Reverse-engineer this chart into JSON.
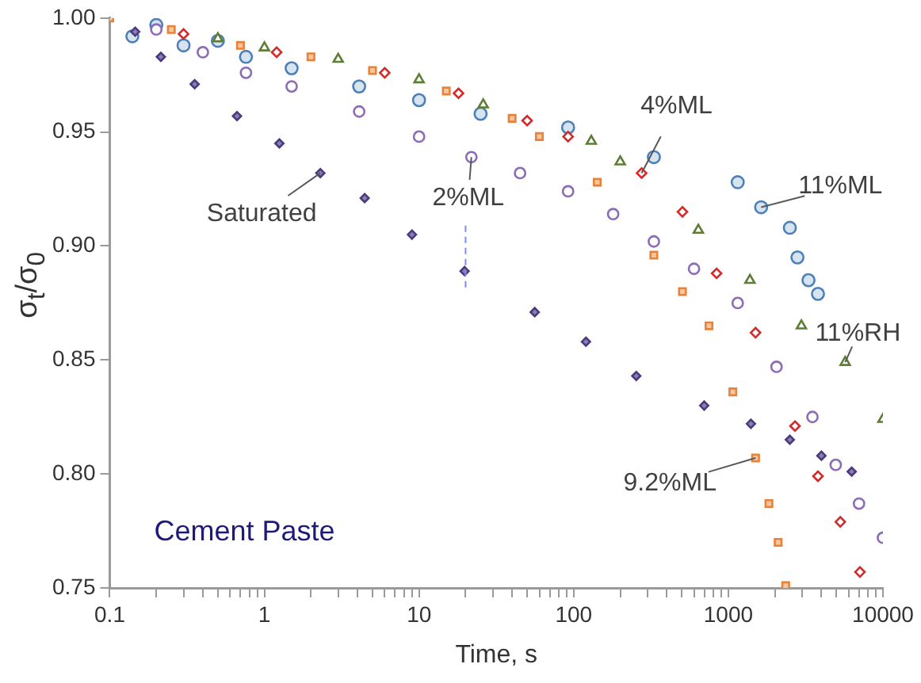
{
  "chart_data": {
    "type": "scatter",
    "xlabel": "Time, s",
    "ylabel": "σ$_{t}$/σ$_{0}$",
    "log": "x",
    "xlim": [
      0.1,
      10000
    ],
    "ylim": [
      0.75,
      1.0
    ],
    "xticks": [
      0.1,
      {
        "value": 0.2,
        "label": null
      },
      {
        "value": 0.3,
        "label": null
      },
      {
        "value": 0.4,
        "label": null
      },
      {
        "value": 0.5,
        "label": null
      },
      {
        "value": 0.6,
        "label": null
      },
      {
        "value": 0.7,
        "label": null
      },
      {
        "value": 0.8,
        "label": null
      },
      {
        "value": 0.9,
        "label": null
      },
      1,
      {
        "value": 2,
        "label": null
      },
      {
        "value": 3,
        "label": null
      },
      {
        "value": 4,
        "label": null
      },
      {
        "value": 5,
        "label": null
      },
      {
        "value": 6,
        "label": null
      },
      {
        "value": 7,
        "label": null
      },
      {
        "value": 8,
        "label": null
      },
      {
        "value": 9,
        "label": null
      },
      10,
      {
        "value": 20,
        "label": null
      },
      {
        "value": 30,
        "label": null
      },
      {
        "value": 40,
        "label": null
      },
      {
        "value": 50,
        "label": null
      },
      {
        "value": 60,
        "label": null
      },
      {
        "value": 70,
        "label": null
      },
      {
        "value": 80,
        "label": null
      },
      {
        "value": 90,
        "label": null
      },
      100,
      {
        "value": 200,
        "label": null
      },
      {
        "value": 300,
        "label": null
      },
      {
        "value": 400,
        "label": null
      },
      {
        "value": 500,
        "label": null
      },
      {
        "value": 600,
        "label": null
      },
      {
        "value": 700,
        "label": null
      },
      {
        "value": 800,
        "label": null
      },
      {
        "value": 900,
        "label": null
      },
      1000,
      {
        "value": 2000,
        "label": null
      },
      {
        "value": 3000,
        "label": null
      },
      {
        "value": 4000,
        "label": null
      },
      {
        "value": 5000,
        "label": null
      },
      {
        "value": 6000,
        "label": null
      },
      {
        "value": 7000,
        "label": null
      },
      {
        "value": 8000,
        "label": null
      },
      {
        "value": 9000,
        "label": null
      },
      10000
    ],
    "yticks": [
      0.75,
      {
        "value": 0.8,
        "label": "0.80"
      },
      0.85,
      {
        "value": 0.9,
        "label": "0.90"
      },
      0.95,
      {
        "value": 1.0,
        "label": "1.00"
      }
    ],
    "grid": false,
    "legend": false,
    "series": [
      {
        "name": "Saturated",
        "color": "#4b3b7e",
        "marker": "diamond",
        "x": [
          0.146,
          0.214,
          0.354,
          0.665,
          1.25,
          2.3,
          4.45,
          9,
          19.7,
          56,
          120,
          254,
          698,
          1400,
          2500,
          4000,
          6280
        ],
        "values": [
          0.994,
          0.983,
          0.971,
          0.957,
          0.945,
          0.932,
          0.921,
          0.905,
          0.889,
          0.871,
          0.858,
          0.843,
          0.83,
          0.822,
          0.815,
          0.808,
          0.801
        ]
      },
      {
        "name": "2%ML",
        "color": "#8c6bb8",
        "marker": "circle",
        "x": [
          0.2,
          0.4,
          0.76,
          1.5,
          4.1,
          10,
          21.8,
          45,
          92,
          180,
          330,
          600,
          1150,
          2050,
          3500,
          4950,
          7000,
          10000
        ],
        "values": [
          0.995,
          0.985,
          0.976,
          0.97,
          0.959,
          0.948,
          0.939,
          0.932,
          0.924,
          0.914,
          0.902,
          0.89,
          0.875,
          0.847,
          0.825,
          0.804,
          0.787,
          0.772
        ]
      },
      {
        "name": "9.2%ML",
        "color": "#e8813a",
        "marker": "square",
        "x": [
          0.1,
          0.25,
          0.7,
          2,
          5,
          15,
          40,
          60,
          142,
          330,
          505,
          750,
          1070,
          1500,
          1830,
          2100,
          2350
        ],
        "values": [
          1.0,
          0.995,
          0.988,
          0.983,
          0.977,
          0.968,
          0.956,
          0.948,
          0.928,
          0.896,
          0.88,
          0.865,
          0.836,
          0.807,
          0.787,
          0.77,
          0.751
        ]
      },
      {
        "name": "4%ML",
        "color": "#d42a2a",
        "marker": "diamond",
        "x": [
          0.3,
          1.2,
          6,
          18,
          50,
          92,
          275,
          505,
          840,
          1500,
          2700,
          3800,
          5300,
          7100
        ],
        "values": [
          0.993,
          0.985,
          0.976,
          0.967,
          0.955,
          0.948,
          0.932,
          0.915,
          0.888,
          0.862,
          0.821,
          0.799,
          0.779,
          0.757
        ]
      },
      {
        "name": "11%RH",
        "color": "#5d7e34",
        "marker": "triangle",
        "x": [
          0.5,
          1,
          3,
          10,
          26,
          130,
          200,
          640,
          1380,
          2970,
          5700,
          10000
        ],
        "values": [
          0.991,
          0.987,
          0.982,
          0.973,
          0.962,
          0.946,
          0.937,
          0.907,
          0.885,
          0.865,
          0.849,
          0.824
        ]
      },
      {
        "name": "11%ML",
        "color": "#4d80b8",
        "marker": "circle",
        "x": [
          0.14,
          0.2,
          0.3,
          0.5,
          0.76,
          1.5,
          4.1,
          10,
          25,
          92,
          330,
          1150,
          1630,
          2500,
          2800,
          3300,
          3800
        ],
        "values": [
          0.992,
          0.997,
          0.988,
          0.99,
          0.983,
          0.978,
          0.97,
          0.964,
          0.958,
          0.952,
          0.939,
          0.928,
          0.917,
          0.908,
          0.895,
          0.885,
          0.879
        ]
      }
    ],
    "ref_lines": [
      {
        "axis": "x",
        "value": 20,
        "color": "#7b8cf0",
        "line_style": "dashed"
      }
    ],
    "annotations": [
      "Cement Paste"
    ]
  }
}
